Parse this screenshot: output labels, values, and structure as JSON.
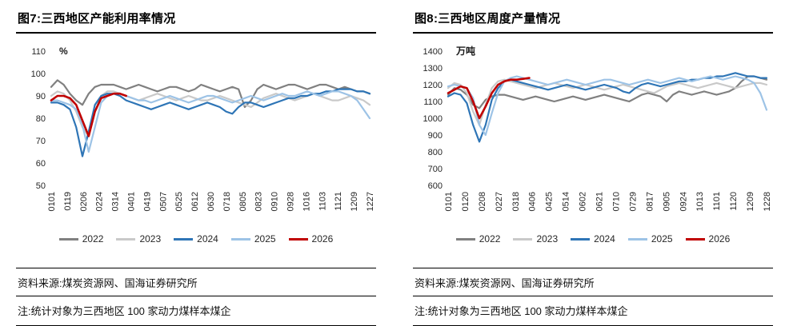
{
  "page": {
    "figures": [
      {
        "title": "图7:三西地区产能利用率情况",
        "source": "资料来源:煤炭资源网、国海证券研究所",
        "note": "注:统计对象为三西地区 100 家动力煤样本煤企"
      },
      {
        "title": "图8:三西地区周度产量情况",
        "source": "资料来源:煤炭资源网、国海证券研究所",
        "note": "注:统计对象为三西地区 100 家动力煤样本煤企"
      }
    ]
  },
  "chart_data": [
    {
      "type": "line",
      "title": "三西地区产能利用率情况",
      "unit": "%",
      "ylim": [
        50,
        110
      ],
      "ytick_step": 10,
      "grid": false,
      "legend_position": "bottom",
      "x_points": 52,
      "x_labels": [
        "0101",
        "0119",
        "0206",
        "0224",
        "0314",
        "0401",
        "0419",
        "0507",
        "0525",
        "0612",
        "0630",
        "0718",
        "0805",
        "0823",
        "0910",
        "0928",
        "1016",
        "1103",
        "1121",
        "1209",
        "1227"
      ],
      "series": [
        {
          "name": "2022",
          "color": "#808080",
          "values": [
            94,
            97,
            95,
            91,
            88,
            86,
            91,
            94,
            95,
            95,
            95,
            94,
            93,
            94,
            95,
            94,
            93,
            92,
            93,
            94,
            94,
            93,
            92,
            93,
            95,
            94,
            93,
            92,
            93,
            94,
            93,
            85,
            88,
            93,
            95,
            94,
            93,
            94,
            95,
            95,
            94,
            93,
            94,
            95,
            95,
            94,
            93,
            94,
            93,
            92,
            92,
            91
          ]
        },
        {
          "name": "2023",
          "color": "#c9c9c9",
          "values": [
            90,
            92,
            91,
            88,
            83,
            76,
            72,
            83,
            90,
            92,
            92,
            91,
            90,
            89,
            88,
            89,
            90,
            91,
            90,
            89,
            88,
            89,
            90,
            89,
            88,
            88,
            89,
            90,
            89,
            88,
            87,
            86,
            85,
            87,
            89,
            90,
            91,
            90,
            89,
            88,
            89,
            90,
            91,
            90,
            89,
            88,
            88,
            89,
            90,
            89,
            88,
            86
          ]
        },
        {
          "name": "2024",
          "color": "#2e75b6",
          "values": [
            87,
            87,
            86,
            84,
            76,
            63,
            74,
            86,
            90,
            91,
            91,
            90,
            88,
            87,
            86,
            85,
            84,
            85,
            86,
            87,
            86,
            85,
            84,
            85,
            86,
            87,
            86,
            85,
            83,
            82,
            85,
            87,
            87,
            86,
            85,
            86,
            87,
            88,
            89,
            89,
            90,
            90,
            91,
            91,
            92,
            92,
            93,
            93,
            93,
            92,
            92,
            91
          ]
        },
        {
          "name": "2025",
          "color": "#9dc3e6",
          "values": [
            88,
            88,
            87,
            86,
            84,
            77,
            65,
            76,
            87,
            90,
            91,
            91,
            90,
            89,
            88,
            88,
            87,
            88,
            89,
            90,
            89,
            88,
            87,
            88,
            89,
            90,
            90,
            89,
            88,
            87,
            88,
            89,
            90,
            89,
            88,
            89,
            90,
            91,
            90,
            90,
            91,
            92,
            91,
            90,
            91,
            92,
            92,
            91,
            90,
            88,
            84,
            80
          ]
        },
        {
          "name": "2026",
          "color": "#c00000",
          "values": [
            88,
            90,
            90,
            89,
            86,
            79,
            72,
            83,
            89,
            90,
            91,
            91,
            90
          ]
        }
      ]
    },
    {
      "type": "line",
      "title": "三西地区周度产量情况",
      "unit": "万吨",
      "ylim": [
        600,
        1400
      ],
      "ytick_step": 100,
      "grid": false,
      "legend_position": "bottom",
      "x_points": 52,
      "x_labels": [
        "0101",
        "0120",
        "0208",
        "0227",
        "0318",
        "0406",
        "0425",
        "0514",
        "0602",
        "0621",
        "0710",
        "0729",
        "0817",
        "0905",
        "0924",
        "1013",
        "1101",
        "1120",
        "1209",
        "1228"
      ],
      "series": [
        {
          "name": "2022",
          "color": "#808080",
          "values": [
            1140,
            1180,
            1170,
            1140,
            1080,
            1060,
            1110,
            1130,
            1140,
            1140,
            1130,
            1120,
            1110,
            1120,
            1130,
            1120,
            1110,
            1100,
            1110,
            1120,
            1130,
            1120,
            1110,
            1120,
            1130,
            1140,
            1130,
            1120,
            1110,
            1100,
            1120,
            1140,
            1150,
            1140,
            1130,
            1100,
            1140,
            1160,
            1150,
            1140,
            1150,
            1160,
            1150,
            1140,
            1150,
            1160,
            1180,
            1220,
            1250,
            1250,
            1240,
            1230
          ]
        },
        {
          "name": "2023",
          "color": "#c9c9c9",
          "values": [
            1180,
            1210,
            1200,
            1150,
            1040,
            960,
            1080,
            1180,
            1220,
            1230,
            1220,
            1210,
            1200,
            1190,
            1180,
            1190,
            1200,
            1210,
            1200,
            1190,
            1180,
            1190,
            1200,
            1190,
            1180,
            1170,
            1180,
            1190,
            1200,
            1190,
            1180,
            1170,
            1160,
            1150,
            1170,
            1190,
            1200,
            1210,
            1200,
            1190,
            1180,
            1190,
            1200,
            1210,
            1200,
            1190,
            1180,
            1190,
            1200,
            1210,
            1210,
            1200
          ]
        },
        {
          "name": "2024",
          "color": "#2e75b6",
          "values": [
            1130,
            1150,
            1140,
            1090,
            960,
            860,
            960,
            1110,
            1180,
            1220,
            1230,
            1220,
            1210,
            1200,
            1190,
            1180,
            1170,
            1180,
            1190,
            1200,
            1190,
            1180,
            1170,
            1180,
            1190,
            1200,
            1190,
            1180,
            1160,
            1150,
            1180,
            1200,
            1210,
            1200,
            1190,
            1200,
            1210,
            1220,
            1220,
            1230,
            1230,
            1240,
            1240,
            1250,
            1250,
            1260,
            1270,
            1260,
            1250,
            1250,
            1240,
            1240
          ]
        },
        {
          "name": "2025",
          "color": "#9dc3e6",
          "values": [
            1190,
            1200,
            1190,
            1180,
            1120,
            960,
            900,
            1030,
            1150,
            1220,
            1240,
            1250,
            1240,
            1230,
            1220,
            1210,
            1200,
            1210,
            1220,
            1230,
            1220,
            1210,
            1200,
            1210,
            1220,
            1230,
            1230,
            1220,
            1210,
            1200,
            1210,
            1220,
            1230,
            1220,
            1210,
            1220,
            1230,
            1240,
            1230,
            1220,
            1230,
            1240,
            1250,
            1240,
            1230,
            1240,
            1250,
            1240,
            1230,
            1210,
            1150,
            1050
          ]
        },
        {
          "name": "2026",
          "color": "#c00000",
          "values": [
            1150,
            1170,
            1190,
            1180,
            1100,
            1000,
            1070,
            1150,
            1200,
            1220,
            1230,
            1230,
            1235,
            1240
          ]
        }
      ]
    }
  ]
}
